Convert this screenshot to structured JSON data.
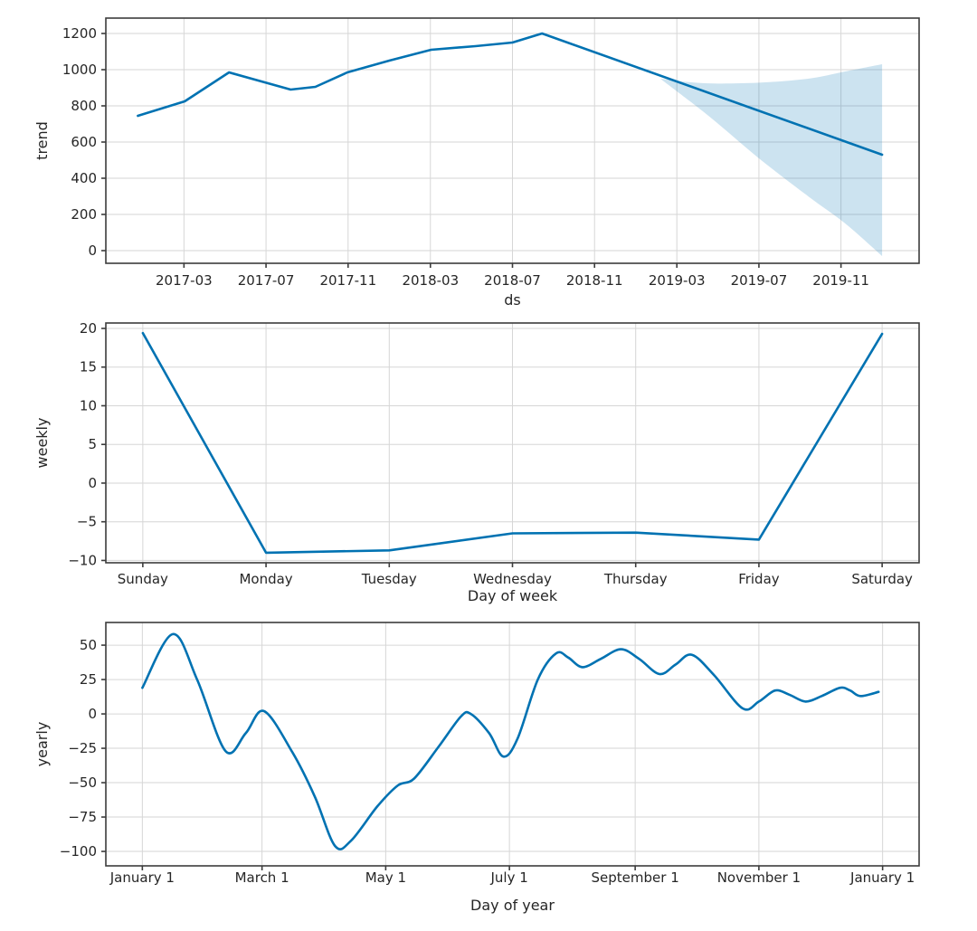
{
  "figure": {
    "description": "Forecast components plot: trend, weekly seasonality, yearly seasonality",
    "line_color": "#0072B2",
    "band_color": "rgba(0, 114, 178, 0.2)",
    "grid_color": "#d6d6d6",
    "spine_color": "#3c3c3c",
    "text_color": "#262626",
    "background": "#ffffff"
  },
  "chart_data": [
    {
      "id": "trend",
      "type": "line",
      "xlabel": "ds",
      "ylabel": "trend",
      "grid": true,
      "legend": "none",
      "xlim": [
        2016.85,
        2020.15
      ],
      "ylim": [
        -70,
        1285
      ],
      "xticks": [
        {
          "v": 2017.167,
          "label": "2017-03"
        },
        {
          "v": 2017.5,
          "label": "2017-07"
        },
        {
          "v": 2017.833,
          "label": "2017-11"
        },
        {
          "v": 2018.167,
          "label": "2018-03"
        },
        {
          "v": 2018.5,
          "label": "2018-07"
        },
        {
          "v": 2018.833,
          "label": "2018-11"
        },
        {
          "v": 2019.167,
          "label": "2019-03"
        },
        {
          "v": 2019.5,
          "label": "2019-07"
        },
        {
          "v": 2019.833,
          "label": "2019-11"
        }
      ],
      "yticks": [
        {
          "v": 0,
          "label": "0"
        },
        {
          "v": 200,
          "label": "200"
        },
        {
          "v": 400,
          "label": "400"
        },
        {
          "v": 600,
          "label": "600"
        },
        {
          "v": 800,
          "label": "800"
        },
        {
          "v": 1000,
          "label": "1000"
        },
        {
          "v": 1200,
          "label": "1200"
        }
      ],
      "series": [
        {
          "name": "trend",
          "smooth": false,
          "points": [
            [
              2016.98,
              745
            ],
            [
              2017.17,
              825
            ],
            [
              2017.35,
              985
            ],
            [
              2017.6,
              890
            ],
            [
              2017.7,
              905
            ],
            [
              2017.83,
              985
            ],
            [
              2018.0,
              1050
            ],
            [
              2018.17,
              1110
            ],
            [
              2018.35,
              1130
            ],
            [
              2018.5,
              1150
            ],
            [
              2018.62,
              1200
            ],
            [
              2020.0,
              530
            ]
          ]
        }
      ],
      "band": {
        "name": "trend-uncertainty",
        "upper": [
          [
            2019.1,
            950
          ],
          [
            2019.28,
            925
          ],
          [
            2019.5,
            928
          ],
          [
            2019.7,
            950
          ],
          [
            2019.85,
            990
          ],
          [
            2020.0,
            1030
          ]
        ],
        "lower": [
          [
            2019.1,
            950
          ],
          [
            2019.3,
            740
          ],
          [
            2019.5,
            510
          ],
          [
            2019.7,
            300
          ],
          [
            2019.85,
            150
          ],
          [
            2020.0,
            -30
          ]
        ]
      }
    },
    {
      "id": "weekly",
      "type": "line",
      "xlabel": "Day of week",
      "ylabel": "weekly",
      "grid": true,
      "legend": "none",
      "xlim": [
        -0.3,
        6.3
      ],
      "ylim": [
        -10.3,
        20.7
      ],
      "xticks": [
        {
          "v": 0,
          "label": "Sunday"
        },
        {
          "v": 1,
          "label": "Monday"
        },
        {
          "v": 2,
          "label": "Tuesday"
        },
        {
          "v": 3,
          "label": "Wednesday"
        },
        {
          "v": 4,
          "label": "Thursday"
        },
        {
          "v": 5,
          "label": "Friday"
        },
        {
          "v": 6,
          "label": "Saturday"
        }
      ],
      "yticks": [
        {
          "v": -10,
          "label": "−10"
        },
        {
          "v": -5,
          "label": "−5"
        },
        {
          "v": 0,
          "label": "0"
        },
        {
          "v": 5,
          "label": "5"
        },
        {
          "v": 10,
          "label": "10"
        },
        {
          "v": 15,
          "label": "15"
        },
        {
          "v": 20,
          "label": "20"
        }
      ],
      "series": [
        {
          "name": "weekly",
          "smooth": false,
          "points": [
            [
              0,
              19.4
            ],
            [
              1,
              -9.0
            ],
            [
              2,
              -8.7
            ],
            [
              3,
              -6.5
            ],
            [
              4,
              -6.4
            ],
            [
              5,
              -7.3
            ],
            [
              6,
              19.3
            ]
          ]
        }
      ]
    },
    {
      "id": "yearly",
      "type": "line",
      "xlabel": "Day of year",
      "ylabel": "yearly",
      "grid": true,
      "legend": "none",
      "xlim": [
        -17,
        384
      ],
      "ylim": [
        -110.5,
        66.5
      ],
      "xticks": [
        {
          "v": 1,
          "label": "January 1"
        },
        {
          "v": 60,
          "label": "March 1"
        },
        {
          "v": 121,
          "label": "May 1"
        },
        {
          "v": 182,
          "label": "July 1"
        },
        {
          "v": 244,
          "label": "September 1"
        },
        {
          "v": 305,
          "label": "November 1"
        },
        {
          "v": 366,
          "label": "January 1"
        }
      ],
      "yticks": [
        {
          "v": -100,
          "label": "−100"
        },
        {
          "v": -75,
          "label": "−75"
        },
        {
          "v": -50,
          "label": "−50"
        },
        {
          "v": -25,
          "label": "−25"
        },
        {
          "v": 0,
          "label": "0"
        },
        {
          "v": 25,
          "label": "25"
        },
        {
          "v": 50,
          "label": "50"
        }
      ],
      "series": [
        {
          "name": "yearly",
          "smooth": true,
          "points": [
            [
              1,
              19
            ],
            [
              16,
              58
            ],
            [
              28,
              25
            ],
            [
              42,
              -27
            ],
            [
              52,
              -14
            ],
            [
              61,
              2
            ],
            [
              75,
              -28
            ],
            [
              86,
              -60
            ],
            [
              96,
              -96
            ],
            [
              104,
              -92
            ],
            [
              117,
              -67
            ],
            [
              127,
              -52
            ],
            [
              135,
              -47
            ],
            [
              147,
              -24
            ],
            [
              158,
              -2
            ],
            [
              163,
              0
            ],
            [
              172,
              -14
            ],
            [
              179,
              -31
            ],
            [
              186,
              -18
            ],
            [
              196,
              25
            ],
            [
              205,
              44
            ],
            [
              211,
              41
            ],
            [
              218,
              34
            ],
            [
              227,
              40
            ],
            [
              237,
              47
            ],
            [
              246,
              40
            ],
            [
              256,
              29
            ],
            [
              264,
              36
            ],
            [
              272,
              43
            ],
            [
              283,
              28
            ],
            [
              297,
              4
            ],
            [
              305,
              9
            ],
            [
              313,
              17
            ],
            [
              320,
              14
            ],
            [
              328,
              9
            ],
            [
              336,
              13
            ],
            [
              345,
              19
            ],
            [
              350,
              17
            ],
            [
              355,
              13
            ],
            [
              364,
              16
            ]
          ]
        }
      ]
    }
  ]
}
